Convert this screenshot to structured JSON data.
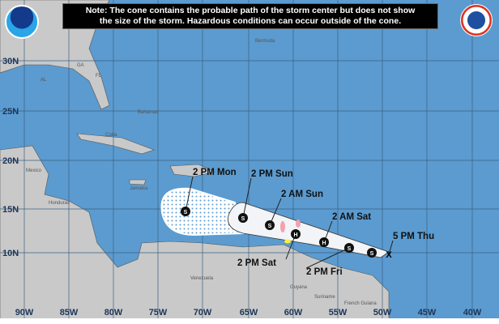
{
  "note": {
    "line1": "Note: The cone contains the probable path of the storm center but does not show",
    "line2": "the size of the storm. Hazardous conditions can occur outside of the cone."
  },
  "logos": {
    "left": "NOAA",
    "right": "National Weather Service"
  },
  "lat_labels": [
    "30N",
    "25N",
    "20N",
    "15N",
    "10N"
  ],
  "lon_labels": [
    "90W",
    "85W",
    "80W",
    "75W",
    "70W",
    "65W",
    "60W",
    "55W",
    "50W",
    "45W",
    "40W"
  ],
  "places": [
    "AL",
    "GA",
    "FL",
    "Bermuda",
    "Bahamas",
    "Cuba",
    "Mexico",
    "Jamaica",
    "Honduras",
    "Venezuela",
    "Guyana",
    "Suriname",
    "French Guiana"
  ],
  "forecast_points": [
    {
      "time": "5 PM Thu",
      "symbol": "X"
    },
    {
      "time": "",
      "symbol": "S"
    },
    {
      "time": "2 PM Fri",
      "symbol": "S"
    },
    {
      "time": "2 AM Sat",
      "symbol": "H"
    },
    {
      "time": "2 PM Sat",
      "symbol": "H"
    },
    {
      "time": "2 AM Sun",
      "symbol": "S"
    },
    {
      "time": "2 PM Sun",
      "symbol": "S"
    },
    {
      "time": "2 PM Mon",
      "symbol": "S"
    }
  ],
  "colors": {
    "ocean": "#5b9bd0",
    "land": "#c9c9c9",
    "cone": "#f2f4f7",
    "note_bg": "#000000"
  }
}
